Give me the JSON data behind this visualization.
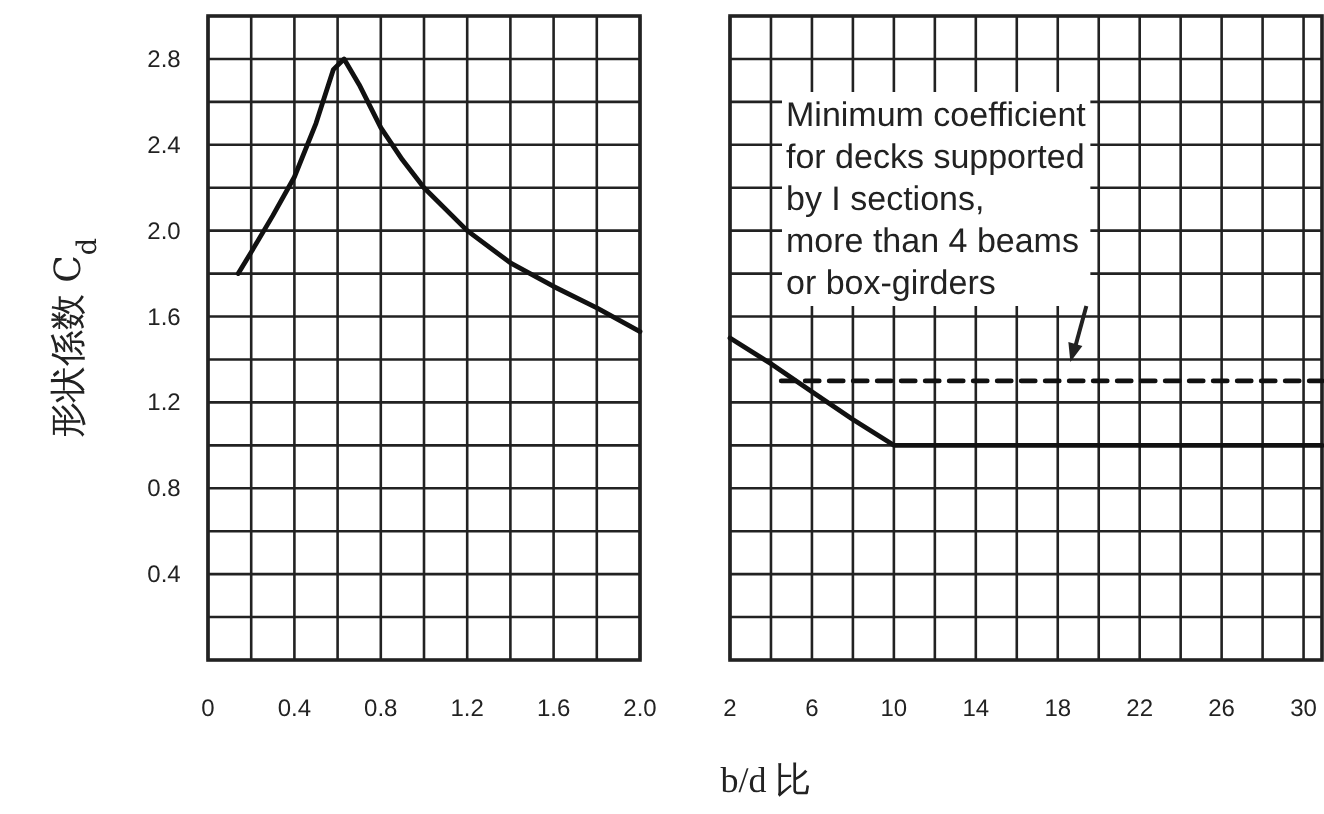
{
  "chart_data": [
    {
      "type": "line",
      "ylabel": "形状係数 C$_{d}$",
      "xlabel": "b/d 比",
      "grid": true,
      "tick_labels": "xy",
      "xlim": [
        0,
        2.0
      ],
      "ylim": [
        0,
        3.0
      ],
      "xticks": [
        0,
        {
          "value": 0.2,
          "label": null
        },
        {
          "value": 0.4,
          "label": "0.4"
        },
        {
          "value": 0.6,
          "label": null
        },
        {
          "value": 0.8,
          "label": "0.8"
        },
        {
          "value": 1.0,
          "label": null
        },
        {
          "value": 1.2,
          "label": "1.2"
        },
        {
          "value": 1.4,
          "label": null
        },
        {
          "value": 1.6,
          "label": "1.6"
        },
        {
          "value": 1.8,
          "label": null
        },
        {
          "value": 2.0,
          "label": "2.0"
        }
      ],
      "yticks": [
        {
          "value": 0.2,
          "label": null
        },
        {
          "value": 0.4,
          "label": "0.4"
        },
        {
          "value": 0.6,
          "label": null
        },
        {
          "value": 0.8,
          "label": "0.8"
        },
        {
          "value": 1.0,
          "label": null
        },
        {
          "value": 1.2,
          "label": "1.2"
        },
        {
          "value": 1.4,
          "label": null
        },
        {
          "value": 1.6,
          "label": "1.6"
        },
        {
          "value": 1.8,
          "label": null
        },
        {
          "value": 2.0,
          "label": "2.0"
        },
        {
          "value": 2.2,
          "label": null
        },
        {
          "value": 2.4,
          "label": "2.4"
        },
        {
          "value": 2.6,
          "label": null
        },
        {
          "value": 2.8,
          "label": "2.8"
        }
      ],
      "series": [
        {
          "color": "#111111",
          "line_style": "solid",
          "x": [
            0.14,
            0.2,
            0.3,
            0.4,
            0.5,
            0.58,
            0.63,
            0.7,
            0.8,
            0.9,
            1.0,
            1.2,
            1.4,
            1.6,
            1.8,
            2.0
          ],
          "values": [
            1.8,
            1.9,
            2.07,
            2.25,
            2.5,
            2.75,
            2.8,
            2.68,
            2.48,
            2.33,
            2.2,
            2.0,
            1.85,
            1.74,
            1.64,
            1.53
          ]
        }
      ]
    },
    {
      "type": "line",
      "grid": true,
      "tick_labels": "x",
      "xlim": [
        2,
        30.9
      ],
      "ylim": [
        0,
        3.0
      ],
      "xticks": [
        2,
        {
          "value": 4,
          "label": null
        },
        6,
        {
          "value": 8,
          "label": null
        },
        10,
        {
          "value": 12,
          "label": null
        },
        14,
        {
          "value": 16,
          "label": null
        },
        18,
        {
          "value": 20,
          "label": null
        },
        22,
        {
          "value": 24,
          "label": null
        },
        26,
        {
          "value": 28,
          "label": null
        },
        30
      ],
      "yticks": [
        0.2,
        0.4,
        0.6,
        0.8,
        1.0,
        1.2,
        1.4,
        1.6,
        1.8,
        2.0,
        2.2,
        2.4,
        2.6,
        2.8
      ],
      "series": [
        {
          "color": "#111111",
          "line_style": "solid",
          "x": [
            2,
            4,
            6,
            8,
            10,
            30.9
          ],
          "values": [
            1.5,
            1.38,
            1.25,
            1.12,
            1.0,
            1.0
          ]
        },
        {
          "color": "#111111",
          "line_style": "dashed",
          "x": [
            4.5,
            30.9
          ],
          "values": [
            1.3,
            1.3
          ]
        }
      ],
      "annotations": [
        "Minimum coefficient\nfor decks supported\nby I sections,\nmore than 4 beams\nor box-girders"
      ]
    }
  ]
}
